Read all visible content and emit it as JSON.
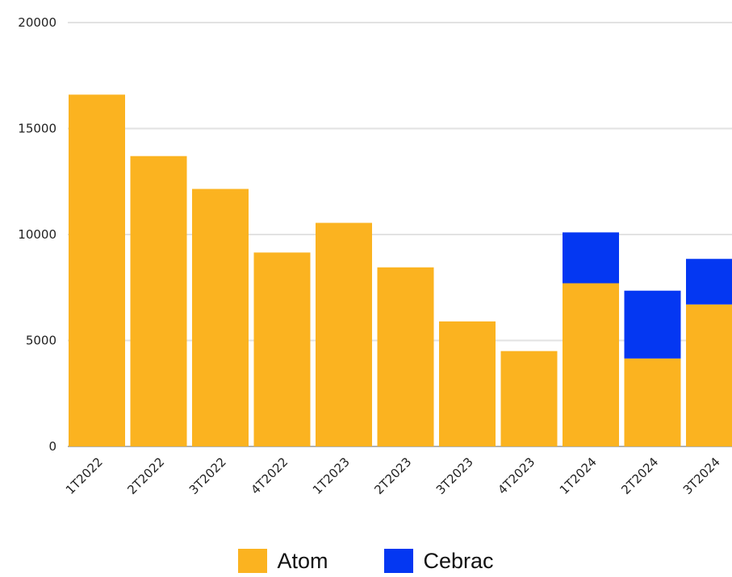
{
  "chart_data": {
    "type": "bar",
    "stacked": true,
    "categories": [
      "1T2022",
      "2T2022",
      "3T2022",
      "4T2022",
      "1T2023",
      "2T2023",
      "3T2023",
      "4T2023",
      "1T2024",
      "2T2024",
      "3T2024"
    ],
    "series": [
      {
        "name": "Atom",
        "color": "#FBB320",
        "values": [
          16600,
          13700,
          12150,
          9150,
          10550,
          8450,
          5900,
          4500,
          7700,
          4150,
          6700
        ]
      },
      {
        "name": "Cebrac",
        "color": "#0437F2",
        "values": [
          0,
          0,
          0,
          0,
          0,
          0,
          0,
          0,
          2400,
          3200,
          2150
        ]
      }
    ],
    "y_ticks": [
      "0",
      "5000",
      "10000",
      "15000",
      "20000"
    ],
    "ylim": [
      0,
      20000
    ],
    "grid": true,
    "legend": "bottom"
  }
}
